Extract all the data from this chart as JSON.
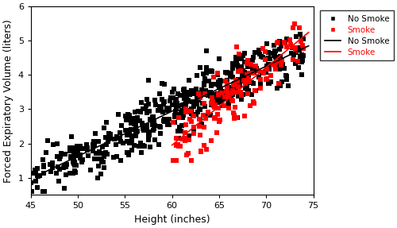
{
  "xlabel": "Height (inches)",
  "ylabel": "Forced Expiratory Volume (liters)",
  "xlim": [
    45,
    75
  ],
  "ylim": [
    0.5,
    6
  ],
  "xticks": [
    45,
    50,
    55,
    60,
    65,
    70,
    75
  ],
  "yticks": [
    1,
    2,
    3,
    4,
    5,
    6
  ],
  "no_smoke_color": "#000000",
  "smoke_color": "#FF0000",
  "marker_size": 16,
  "line_width": 1.2,
  "legend_labels": [
    "No Smoke",
    "Smoke",
    "No Smoke",
    "Smoke"
  ],
  "background_color": "#ffffff",
  "ns_line_x": [
    45.5,
    74.5
  ],
  "ns_line_y": [
    1.0,
    4.85
  ],
  "smoke_line_x": [
    60.5,
    74.5
  ],
  "smoke_line_y": [
    2.3,
    4.9
  ]
}
